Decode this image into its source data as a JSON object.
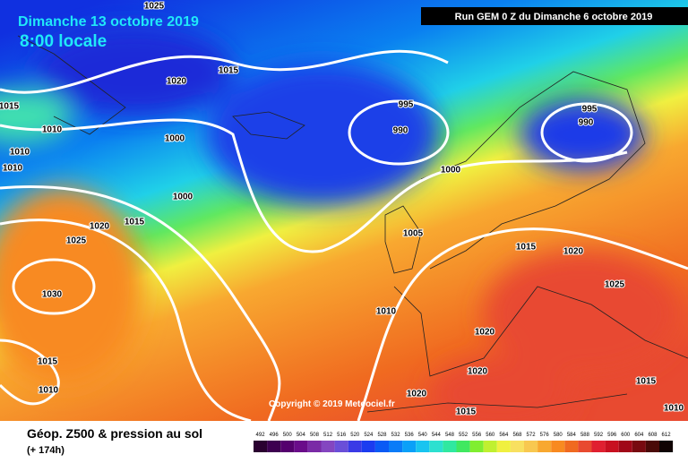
{
  "header": {
    "date": "Dimanche 13 octobre 2019",
    "time": "8:00 locale",
    "run": "Run GEM 0 Z du Dimanche 6 octobre 2019"
  },
  "copyright": "Copyright © 2019 Meteociel.fr",
  "legend": {
    "title": "Géop. Z500 & pression au sol",
    "lead": "(+ 174h)",
    "scale": [
      {
        "value": 492,
        "color": "#2a0030"
      },
      {
        "value": 496,
        "color": "#3d0050"
      },
      {
        "value": 500,
        "color": "#55006e"
      },
      {
        "value": 504,
        "color": "#6a0c8a"
      },
      {
        "value": 508,
        "color": "#7a2aa6"
      },
      {
        "value": 512,
        "color": "#8446c0"
      },
      {
        "value": 516,
        "color": "#6a4fd8"
      },
      {
        "value": 520,
        "color": "#3a3ae6"
      },
      {
        "value": 524,
        "color": "#1b3cf0"
      },
      {
        "value": 528,
        "color": "#0a5af5"
      },
      {
        "value": 532,
        "color": "#0a7cf8"
      },
      {
        "value": 536,
        "color": "#0aa0f8"
      },
      {
        "value": 540,
        "color": "#18c4f0"
      },
      {
        "value": 544,
        "color": "#2ce0d0"
      },
      {
        "value": 548,
        "color": "#30e8a0"
      },
      {
        "value": 552,
        "color": "#40e860"
      },
      {
        "value": 556,
        "color": "#80ee30"
      },
      {
        "value": 560,
        "color": "#c0f030"
      },
      {
        "value": 564,
        "color": "#f0f040"
      },
      {
        "value": 568,
        "color": "#f8e060"
      },
      {
        "value": 572,
        "color": "#f8c850"
      },
      {
        "value": 576,
        "color": "#f8a830"
      },
      {
        "value": 580,
        "color": "#f88a20"
      },
      {
        "value": 584,
        "color": "#f06a20"
      },
      {
        "value": 588,
        "color": "#e84a30"
      },
      {
        "value": 592,
        "color": "#e02030"
      },
      {
        "value": 596,
        "color": "#c81020"
      },
      {
        "value": 600,
        "color": "#a00818"
      },
      {
        "value": 604,
        "color": "#780a10"
      },
      {
        "value": 608,
        "color": "#4a0a08"
      },
      {
        "value": 612,
        "color": "#100404"
      }
    ]
  },
  "isobar_labels": [
    1025,
    1020,
    1015,
    1015,
    1010,
    1000,
    1010,
    1010,
    995,
    990,
    1000,
    995,
    990,
    1000,
    1015,
    1020,
    1025,
    1030,
    1005,
    1015,
    1020,
    1025,
    1010,
    1020,
    1015,
    1010,
    1020,
    1020,
    1015,
    1015,
    1010
  ]
}
